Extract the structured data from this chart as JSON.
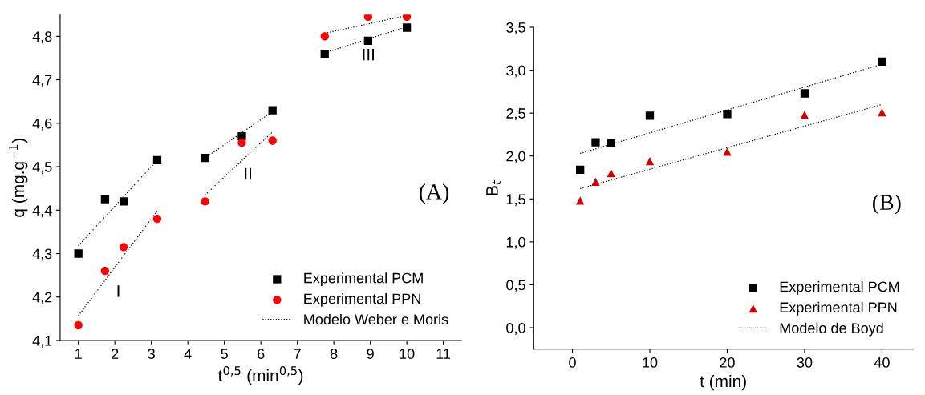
{
  "chart_data": [
    {
      "type": "scatter",
      "xlabel": "t$^{0,5}$ (min$^{0,5}$)",
      "ylabel": "q (mg.g$^{−1}$)",
      "xlim": [
        0.5,
        11.5
      ],
      "ylim": [
        4.1,
        4.85
      ],
      "xticks": [
        1,
        2,
        3,
        4,
        5,
        6,
        7,
        8,
        9,
        10,
        11
      ],
      "yticks": [
        {
          "value": 4.1,
          "label": "4,1"
        },
        {
          "value": 4.2,
          "label": "4,2"
        },
        {
          "value": 4.3,
          "label": "4,3"
        },
        {
          "value": 4.4,
          "label": "4,4"
        },
        {
          "value": 4.5,
          "label": "4,5"
        },
        {
          "value": 4.6,
          "label": "4,6"
        },
        {
          "value": 4.7,
          "label": "4,7"
        },
        {
          "value": 4.8,
          "label": "4,8"
        }
      ],
      "legend": "lower right",
      "grid": false,
      "series": [
        {
          "name": "Experimental PCM",
          "color": "#000000",
          "marker": "square",
          "x": [
            1,
            1.73,
            2.24,
            3.16,
            4.47,
            5.48,
            6.32,
            7.75,
            8.94,
            10
          ],
          "values": [
            4.3,
            4.425,
            4.42,
            4.515,
            4.52,
            4.57,
            4.63,
            4.76,
            4.79,
            4.82
          ]
        },
        {
          "name": "Experimental PPN",
          "color": "#ff0000",
          "marker": "circle",
          "x": [
            1,
            1.73,
            2.24,
            3.16,
            4.47,
            5.48,
            6.32,
            7.75,
            8.94,
            10
          ],
          "values": [
            4.135,
            4.26,
            4.315,
            4.38,
            4.42,
            4.555,
            4.56,
            4.8,
            4.845,
            4.845
          ]
        },
        {
          "name": "Modelo Weber e Moris",
          "type": "line",
          "color": "#000000",
          "line_style": "dotted",
          "x": [
            1,
            3.16,
            3.5,
            4.47,
            6.32,
            7,
            7.75,
            10
          ],
          "values": [
            4.318,
            4.515,
            null,
            4.52,
            4.627,
            null,
            4.762,
            4.822
          ]
        },
        {
          "type": "line",
          "color": "#000000",
          "line_style": "dotted",
          "x": [
            1,
            3.16,
            3.5,
            4.47,
            6.32,
            7,
            7.75,
            10
          ],
          "values": [
            4.157,
            4.398,
            null,
            4.435,
            4.58,
            null,
            4.807,
            4.848
          ]
        }
      ],
      "annotations": [
        "I",
        "II",
        "III",
        "(A)"
      ]
    },
    {
      "type": "scatter",
      "xlabel": "t (min)",
      "ylabel": "B$_{t}$",
      "xlim": [
        -5,
        44
      ],
      "ylim": [
        -0.25,
        3.5
      ],
      "xticks": [
        0,
        10,
        20,
        30,
        40
      ],
      "yticks": [
        {
          "value": 0,
          "label": "0,0"
        },
        {
          "value": 0.5,
          "label": "0,5"
        },
        {
          "value": 1,
          "label": "1,0"
        },
        {
          "value": 1.5,
          "label": "1,5"
        },
        {
          "value": 2,
          "label": "2,0"
        },
        {
          "value": 2.5,
          "label": "2,5"
        },
        {
          "value": 3,
          "label": "3,0"
        },
        {
          "value": 3.5,
          "label": "3,5"
        }
      ],
      "legend": "lower right",
      "grid": false,
      "series": [
        {
          "name": "Experimental PCM",
          "color": "#000000",
          "marker": "square",
          "x": [
            1,
            3,
            5,
            10,
            20,
            30,
            40
          ],
          "values": [
            1.84,
            2.16,
            2.15,
            2.47,
            2.49,
            2.73,
            3.1
          ]
        },
        {
          "name": "Experimental PPN",
          "color": "#cc0000",
          "marker": "triangle",
          "x": [
            1,
            3,
            5,
            10,
            20,
            30,
            40
          ],
          "values": [
            1.48,
            1.7,
            1.8,
            1.94,
            2.05,
            2.48,
            2.51
          ]
        },
        {
          "name": "Modelo de Boyd",
          "type": "line",
          "color": "#000000",
          "line_style": "dotted",
          "x": [
            1,
            40
          ],
          "values": [
            2.03,
            3.07
          ]
        },
        {
          "type": "line",
          "color": "#000000",
          "line_style": "dotted",
          "x": [
            1,
            40
          ],
          "values": [
            1.62,
            2.6
          ]
        }
      ],
      "annotations": [
        "(B)"
      ]
    }
  ]
}
